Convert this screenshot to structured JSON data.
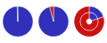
{
  "chart_data": [
    {
      "type": "pie",
      "values": [
        99.3,
        0.7
      ],
      "colors": [
        "#3030bb",
        "#cc1111"
      ]
    },
    {
      "type": "pie",
      "values": [
        96.0,
        4.0
      ],
      "colors": [
        "#3030bb",
        "#cc1111"
      ]
    },
    {
      "type": "pie",
      "series": [
        {
          "values": [
            20.0,
            80.0
          ],
          "colors": [
            "#3030bb",
            "#cc1111"
          ]
        },
        {
          "values": [
            20.0,
            80.0
          ],
          "colors": [
            "#3030bb",
            "#cc1111"
          ]
        }
      ]
    }
  ]
}
